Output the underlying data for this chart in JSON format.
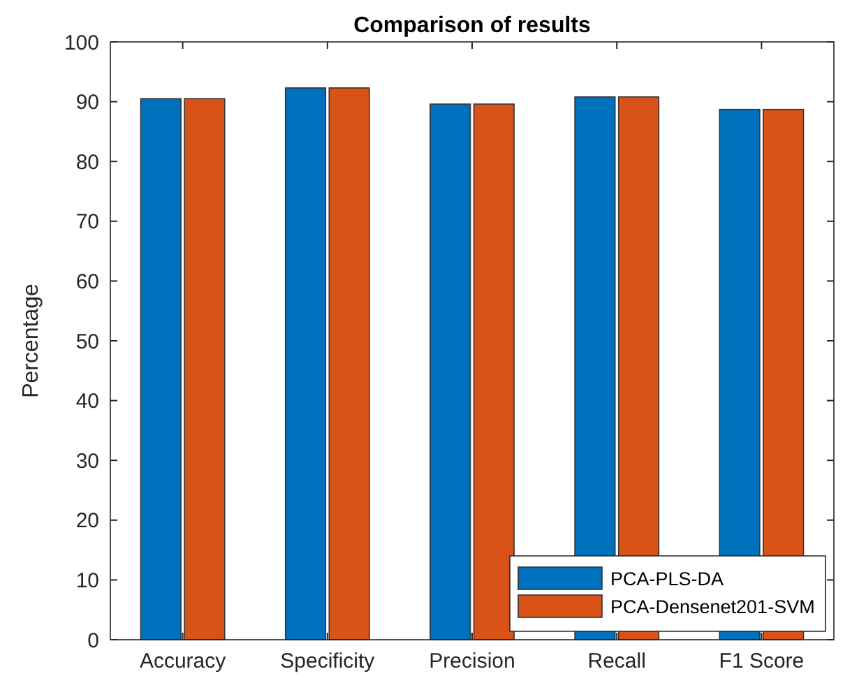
{
  "chart_data": {
    "type": "bar",
    "title": "Comparison of results",
    "ylabel": "Percentage",
    "categories": [
      "Accuracy",
      "Specificity",
      "Precision",
      "Recall",
      "F1 Score"
    ],
    "series": [
      {
        "name": "PCA-PLS-DA",
        "color": "#0072bd",
        "values": [
          90.5,
          92.3,
          89.6,
          90.8,
          88.7
        ]
      },
      {
        "name": "PCA-Densenet201-SVM",
        "color": "#d95319",
        "values": [
          90.5,
          92.3,
          89.6,
          90.8,
          88.7
        ]
      }
    ],
    "ylim": [
      0,
      100
    ],
    "yticks": [
      0,
      10,
      20,
      30,
      40,
      50,
      60,
      70,
      80,
      90,
      100
    ],
    "legend": "bottom right",
    "grid": false
  }
}
